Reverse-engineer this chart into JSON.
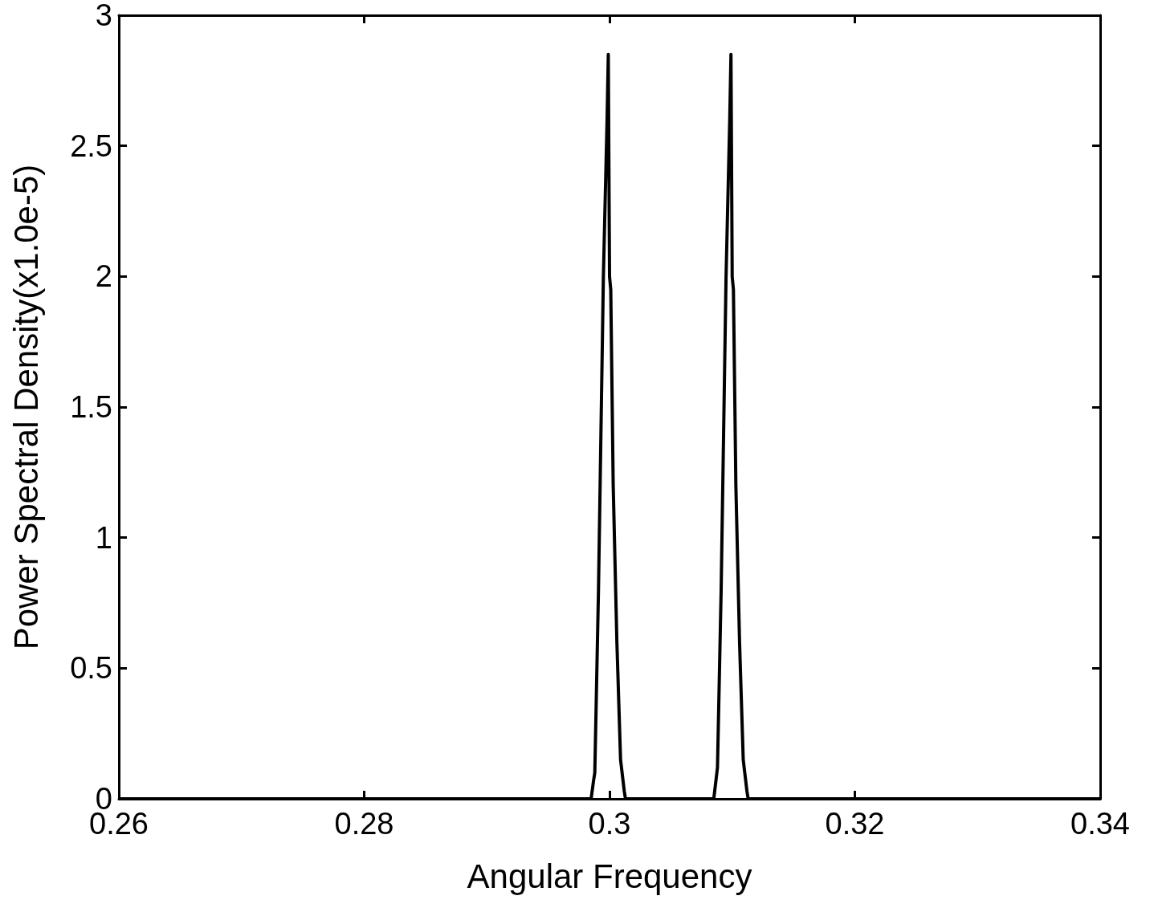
{
  "chart_data": {
    "type": "line",
    "xlabel": "Angular Frequency",
    "ylabel": "Power Spectral Density(x1.0e-5)",
    "x": [
      0.26,
      0.2985,
      0.2987,
      0.2988,
      0.2991,
      0.2995,
      0.2998,
      0.2999,
      0.3,
      0.3001,
      0.3003,
      0.3006,
      0.3009,
      0.3012,
      0.3013,
      0.3085,
      0.3087,
      0.3088,
      0.3091,
      0.3095,
      0.3098,
      0.3099,
      0.31,
      0.3101,
      0.3103,
      0.3106,
      0.3109,
      0.3112,
      0.3113,
      0.34
    ],
    "series": [
      {
        "color": "#000000",
        "values": [
          0,
          0,
          0.07,
          0.1,
          0.8,
          2.0,
          2.6,
          2.85,
          2.0,
          1.95,
          1.2,
          0.6,
          0.15,
          0.03,
          0,
          0,
          0.08,
          0.12,
          0.8,
          2.0,
          2.6,
          2.85,
          2.0,
          1.95,
          1.2,
          0.6,
          0.15,
          0.03,
          0,
          0
        ]
      }
    ],
    "xlim": [
      0.26,
      0.34
    ],
    "xticks": [
      0.26,
      0.28,
      0.3,
      0.32,
      0.34
    ],
    "ylim": [
      0,
      3
    ],
    "yticks": [
      0,
      0.5,
      1,
      1.5,
      2,
      2.5,
      3
    ],
    "grid": false,
    "marker": "none",
    "line_style": "solid"
  }
}
